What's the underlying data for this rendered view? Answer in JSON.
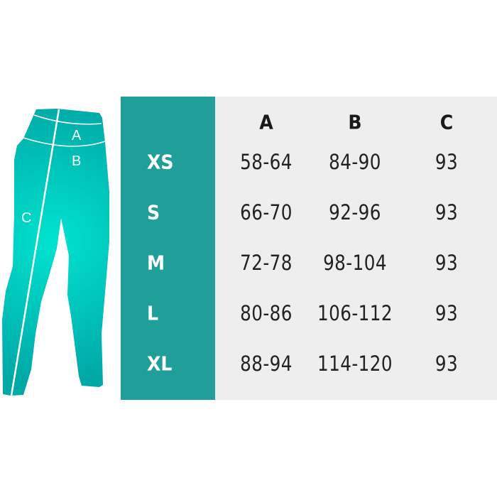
{
  "figure": {
    "labels": {
      "a": "A",
      "b": "B",
      "c": "C"
    },
    "fill_center": "#00e3d0",
    "fill_edge": "#00a8a6"
  },
  "colors": {
    "size_panel": "#1f9e9a",
    "value_panel": "#eeeeee"
  },
  "table": {
    "columns": [
      "A",
      "B",
      "C"
    ],
    "rows": [
      {
        "size": "XS",
        "a": "58-64",
        "b": "84-90",
        "c": "93"
      },
      {
        "size": "S",
        "a": "66-70",
        "b": "92-96",
        "c": "93"
      },
      {
        "size": "M",
        "a": "72-78",
        "b": "98-104",
        "c": "93"
      },
      {
        "size": "L",
        "a": "80-86",
        "b": "106-112",
        "c": "93"
      },
      {
        "size": "XL",
        "a": "88-94",
        "b": "114-120",
        "c": "93"
      }
    ]
  }
}
